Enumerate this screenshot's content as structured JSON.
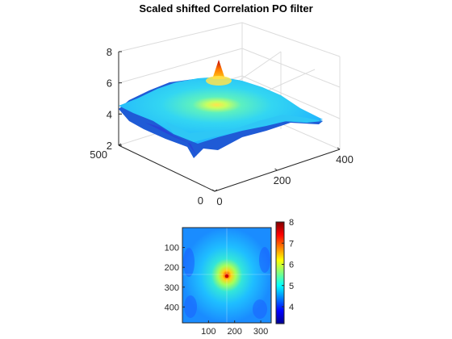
{
  "chart_data": [
    {
      "type": "surface",
      "title": "Scaled shifted Correlation PO filter",
      "x_ticks": [
        "0",
        "200",
        "400"
      ],
      "y_ticks": [
        "0",
        "500"
      ],
      "z_ticks": [
        "2",
        "4",
        "6",
        "8"
      ],
      "xlim": [
        0,
        400
      ],
      "ylim": [
        0,
        500
      ],
      "zlim": [
        2,
        8
      ],
      "peak": {
        "x": 170,
        "y": 250,
        "z": 8
      },
      "baseline_z": 4.5,
      "grid": "on",
      "colormap": "jet"
    },
    {
      "type": "heatmap",
      "x_ticks": [
        "100",
        "200",
        "300"
      ],
      "y_ticks": [
        "100",
        "200",
        "300",
        "400"
      ],
      "xlim": [
        0,
        340
      ],
      "ylim": [
        0,
        480
      ],
      "colorbar_ticks": [
        "4",
        "5",
        "6",
        "7",
        "8"
      ],
      "clim": [
        3.2,
        8
      ],
      "peak": {
        "x": 170,
        "y": 245
      },
      "colormap": "jet"
    }
  ]
}
